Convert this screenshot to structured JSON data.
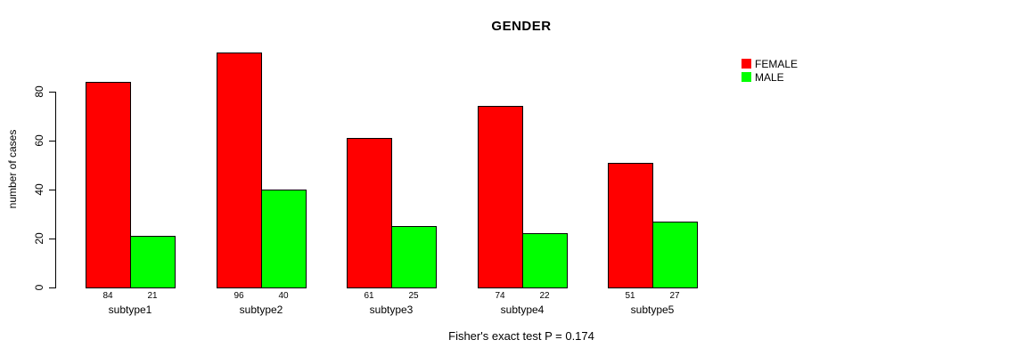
{
  "title": "GENDER",
  "y_axis": {
    "label": "number of cases",
    "ticks": [
      0,
      20,
      40,
      60,
      80
    ]
  },
  "legend": {
    "items": [
      {
        "label": "FEMALE",
        "color": "#ff0000"
      },
      {
        "label": "MALE",
        "color": "#00ff00"
      }
    ]
  },
  "footer_text": "Fisher's exact test P = 0.174",
  "chart_data": {
    "type": "bar",
    "title": "GENDER",
    "xlabel": "",
    "ylabel": "number of cases",
    "categories": [
      "subtype1",
      "subtype2",
      "subtype3",
      "subtype4",
      "subtype5"
    ],
    "series": [
      {
        "name": "FEMALE",
        "color": "#ff0000",
        "values": [
          84,
          96,
          61,
          74,
          51
        ]
      },
      {
        "name": "MALE",
        "color": "#00ff00",
        "values": [
          21,
          40,
          25,
          22,
          27
        ]
      }
    ],
    "bar_labels": [
      [
        84,
        96,
        61,
        74,
        51
      ],
      [
        21,
        40,
        25,
        22,
        27
      ]
    ],
    "ylim": [
      0,
      100
    ],
    "yticks": [
      0,
      20,
      40,
      60,
      80
    ],
    "grid": false,
    "legend_position": "top-right",
    "annotation": "Fisher's exact test P = 0.174"
  }
}
